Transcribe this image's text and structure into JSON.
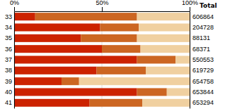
{
  "chart_data": {
    "type": "bar",
    "orientation": "horizontal",
    "stacked": true,
    "title": "Total",
    "categories": [
      "33",
      "34",
      "35",
      "36",
      "37",
      "38",
      "39",
      "40",
      "41"
    ],
    "series": [
      {
        "color": "#cc2200",
        "values": [
          0.12,
          0.49,
          0.38,
          0.5,
          0.7,
          0.47,
          0.27,
          0.7,
          0.43
        ]
      },
      {
        "color": "#cc6622",
        "values": [
          0.58,
          0.22,
          0.32,
          0.22,
          0.22,
          0.28,
          0.1,
          0.17,
          0.3
        ]
      },
      {
        "color": "#f0d0a0",
        "values": [
          0.3,
          0.29,
          0.3,
          0.28,
          0.08,
          0.25,
          0.63,
          0.13,
          0.27
        ]
      }
    ],
    "totals": [
      606864,
      204728,
      88131,
      68371,
      550553,
      619729,
      654758,
      653844,
      653294
    ],
    "xlim": [
      0,
      1.0
    ],
    "xticks": [
      {
        "value": 0,
        "label": "0%"
      },
      {
        "value": 0.5,
        "label": "50%"
      },
      {
        "value": 1.0,
        "label": "100%"
      }
    ],
    "grid": true
  }
}
